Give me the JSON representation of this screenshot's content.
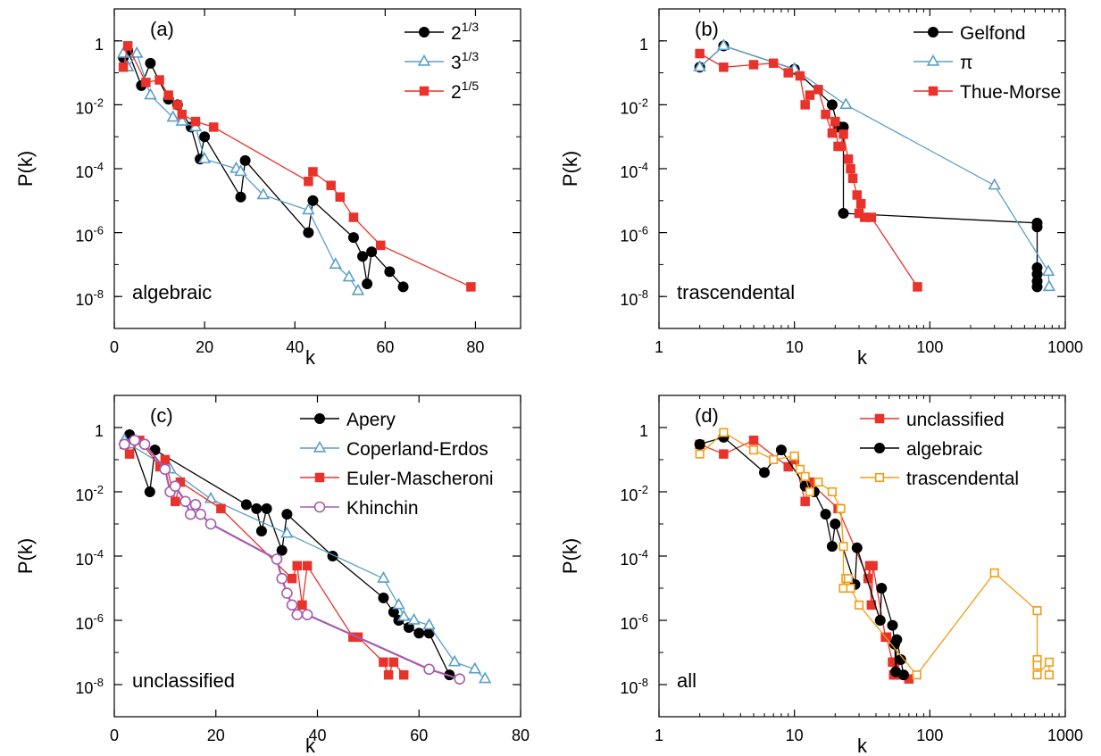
{
  "chart_data": [
    {
      "type": "line",
      "panel_label": "(a)",
      "annotation": "algebraic",
      "xlabel": "k",
      "ylabel": "P(k)",
      "xscale": "linear",
      "yscale": "log",
      "xlim": [
        0,
        90
      ],
      "ylim": [
        1e-09,
        10
      ],
      "legend_position": "top-right",
      "x_ticks": [
        {
          "value": 0,
          "label": "0"
        },
        {
          "value": 20,
          "label": "20"
        },
        {
          "value": 40,
          "label": "40"
        },
        {
          "value": 60,
          "label": "60"
        },
        {
          "value": 80,
          "label": "80"
        }
      ],
      "y_ticks": [
        {
          "value": 1,
          "base": "1",
          "exp": ""
        },
        {
          "value": 0.01,
          "base": "10",
          "exp": "-2"
        },
        {
          "value": 0.0001,
          "base": "10",
          "exp": "-4"
        },
        {
          "value": 1e-06,
          "base": "10",
          "exp": "-6"
        },
        {
          "value": 1e-08,
          "base": "10",
          "exp": "-8"
        }
      ],
      "series": [
        {
          "name_base": "2",
          "name_exp": "1/3",
          "color": "#000000",
          "marker": "circle",
          "fill": "filled",
          "x": [
            2,
            3,
            6,
            8,
            12,
            14,
            17,
            19,
            20,
            28,
            29,
            43,
            44,
            53,
            55,
            56,
            57,
            61,
            64
          ],
          "y": [
            0.3,
            0.5,
            0.04,
            0.2,
            0.015,
            0.01,
            0.002,
            0.0002,
            0.001,
            1.3e-05,
            0.00018,
            1e-06,
            1e-05,
            7e-07,
            1.8e-07,
            2.5e-08,
            2.5e-07,
            6e-08,
            2e-08
          ]
        },
        {
          "name_base": "3",
          "name_exp": "1/3",
          "color": "#5b9ec9",
          "marker": "triangle",
          "fill": "open",
          "x": [
            2,
            3,
            5,
            8,
            13,
            15,
            18,
            20,
            27,
            28,
            33,
            43,
            49,
            52,
            54
          ],
          "y": [
            0.4,
            0.15,
            0.4,
            0.02,
            0.004,
            0.003,
            0.002,
            0.0002,
            0.0001,
            8e-05,
            1.5e-05,
            5e-06,
            1e-07,
            4e-08,
            1.5e-08
          ]
        },
        {
          "name_base": "2",
          "name_exp": "1/5",
          "color": "#e8322a",
          "marker": "square",
          "fill": "filled",
          "x": [
            2,
            3,
            7,
            10,
            12,
            14,
            15,
            18,
            22,
            43,
            44,
            48,
            50,
            53,
            59,
            79
          ],
          "y": [
            0.15,
            0.7,
            0.05,
            0.06,
            0.02,
            0.01,
            0.005,
            0.003,
            0.002,
            4e-05,
            8e-05,
            3e-05,
            1.3e-05,
            3e-06,
            4e-07,
            2e-08
          ]
        }
      ]
    },
    {
      "type": "line",
      "panel_label": "(b)",
      "annotation": "trascendental",
      "xlabel": "k",
      "ylabel": "P(k)",
      "xscale": "log",
      "yscale": "log",
      "xlim": [
        1,
        1000
      ],
      "ylim": [
        1e-09,
        10
      ],
      "legend_position": "top-right",
      "x_ticks": [
        {
          "value": 1,
          "label": "1"
        },
        {
          "value": 10,
          "label": "10"
        },
        {
          "value": 100,
          "label": "100"
        },
        {
          "value": 1000,
          "label": "1000"
        }
      ],
      "y_ticks": [
        {
          "value": 1,
          "base": "1",
          "exp": ""
        },
        {
          "value": 0.01,
          "base": "10",
          "exp": "-2"
        },
        {
          "value": 0.0001,
          "base": "10",
          "exp": "-4"
        },
        {
          "value": 1e-06,
          "base": "10",
          "exp": "-6"
        },
        {
          "value": 1e-08,
          "base": "10",
          "exp": "-8"
        }
      ],
      "series": [
        {
          "name": "Gelfond",
          "color": "#000000",
          "marker": "circle",
          "fill": "filled",
          "x": [
            2,
            3,
            10,
            19,
            21,
            22,
            23,
            23,
            620,
            620,
            620,
            620,
            620,
            620
          ],
          "y": [
            0.15,
            0.7,
            0.13,
            0.01,
            0.002,
            0.002,
            0.002,
            4e-06,
            2e-06,
            1.5e-06,
            8e-08,
            5e-08,
            3e-08,
            2e-08
          ]
        },
        {
          "name": "π",
          "color": "#5b9ec9",
          "marker": "triangle",
          "fill": "open",
          "x": [
            2,
            3,
            10,
            24,
            300,
            750,
            760
          ],
          "y": [
            0.15,
            0.7,
            0.13,
            0.01,
            3e-05,
            6e-08,
            2e-08
          ]
        },
        {
          "name": "Thue-Morse",
          "color": "#e8322a",
          "marker": "square",
          "fill": "filled",
          "x": [
            2,
            3,
            5,
            7,
            9,
            11,
            12,
            13,
            15,
            17,
            19,
            20,
            21,
            22,
            23,
            25,
            26,
            27,
            29,
            30,
            31,
            33,
            37,
            81
          ],
          "y": [
            0.4,
            0.15,
            0.18,
            0.2,
            0.1,
            0.08,
            0.01,
            0.02,
            0.03,
            0.005,
            0.0013,
            0.003,
            0.0005,
            0.0005,
            0.0012,
            0.0002,
            0.0001,
            5e-05,
            1.5e-05,
            4e-06,
            8e-06,
            3e-06,
            3e-06,
            2e-08
          ]
        }
      ]
    },
    {
      "type": "line",
      "panel_label": "(c)",
      "annotation": "unclassified",
      "xlabel": "k",
      "ylabel": "P(k)",
      "xscale": "linear",
      "yscale": "log",
      "xlim": [
        0,
        80
      ],
      "ylim": [
        1e-09,
        10
      ],
      "legend_position": "top-right",
      "x_ticks": [
        {
          "value": 0,
          "label": "0"
        },
        {
          "value": 20,
          "label": "20"
        },
        {
          "value": 40,
          "label": "40"
        },
        {
          "value": 60,
          "label": "60"
        },
        {
          "value": 80,
          "label": "80"
        }
      ],
      "y_ticks": [
        {
          "value": 1,
          "base": "1",
          "exp": ""
        },
        {
          "value": 0.01,
          "base": "10",
          "exp": "-2"
        },
        {
          "value": 0.0001,
          "base": "10",
          "exp": "-4"
        },
        {
          "value": 1e-06,
          "base": "10",
          "exp": "-6"
        },
        {
          "value": 1e-08,
          "base": "10",
          "exp": "-8"
        }
      ],
      "series": [
        {
          "name": "Apery",
          "color": "#000000",
          "marker": "circle",
          "fill": "filled",
          "x": [
            2,
            3,
            7,
            8,
            26,
            28,
            29,
            30,
            33,
            34,
            43,
            53,
            55,
            56,
            58,
            60,
            62,
            66
          ],
          "y": [
            0.3,
            0.6,
            0.01,
            0.2,
            0.004,
            0.003,
            0.0006,
            0.003,
            0.00015,
            0.002,
            0.0001,
            5e-06,
            1.8e-06,
            1e-06,
            6e-07,
            4e-07,
            4e-07,
            2e-08
          ]
        },
        {
          "name": "Coperland-Erdos",
          "color": "#5b9ec9",
          "marker": "triangle",
          "fill": "open",
          "x": [
            2,
            3,
            11,
            19,
            34,
            53,
            56,
            57,
            59,
            62,
            67,
            71,
            73
          ],
          "y": [
            0.4,
            0.3,
            0.05,
            0.006,
            0.0005,
            2e-05,
            3e-06,
            1.3e-06,
            1e-06,
            7e-07,
            5e-08,
            3e-08,
            1.5e-08
          ]
        },
        {
          "name": "Euler-Mascheroni",
          "color": "#e8322a",
          "marker": "square",
          "fill": "filled",
          "x": [
            2,
            3,
            5,
            9,
            10,
            12,
            13,
            21,
            35,
            36,
            37,
            38,
            47,
            48,
            53,
            54,
            55,
            57
          ],
          "y": [
            0.3,
            0.15,
            0.4,
            0.06,
            0.1,
            0.005,
            0.02,
            0.003,
            2e-05,
            5e-05,
            3e-06,
            5e-05,
            3e-07,
            3e-07,
            5e-08,
            2e-08,
            5e-08,
            2e-08
          ]
        },
        {
          "name": "Khinchin",
          "color": "#a65cad",
          "marker": "circle",
          "fill": "open",
          "x": [
            2,
            4,
            6,
            10,
            11,
            12,
            14,
            15,
            16,
            17,
            19,
            32,
            33,
            34,
            35,
            36,
            38,
            62,
            68
          ],
          "y": [
            0.3,
            0.4,
            0.3,
            0.05,
            0.01,
            0.015,
            0.005,
            0.002,
            0.004,
            0.002,
            0.001,
            8e-05,
            2e-05,
            7e-06,
            3e-06,
            1.5e-06,
            1.5e-06,
            3e-08,
            1.5e-08
          ]
        }
      ]
    },
    {
      "type": "line",
      "panel_label": "(d)",
      "annotation": "all",
      "xlabel": "k",
      "ylabel": "P(k)",
      "xscale": "log",
      "yscale": "log",
      "xlim": [
        1,
        1000
      ],
      "ylim": [
        1e-09,
        10
      ],
      "legend_position": "top-right",
      "x_ticks": [
        {
          "value": 1,
          "label": "1"
        },
        {
          "value": 10,
          "label": "10"
        },
        {
          "value": 100,
          "label": "100"
        },
        {
          "value": 1000,
          "label": "1000"
        }
      ],
      "y_ticks": [
        {
          "value": 1,
          "base": "1",
          "exp": ""
        },
        {
          "value": 0.01,
          "base": "10",
          "exp": "-2"
        },
        {
          "value": 0.0001,
          "base": "10",
          "exp": "-4"
        },
        {
          "value": 1e-06,
          "base": "10",
          "exp": "-6"
        },
        {
          "value": 1e-08,
          "base": "10",
          "exp": "-8"
        }
      ],
      "series": [
        {
          "name": "unclassified",
          "color": "#e8322a",
          "marker": "square",
          "fill": "filled",
          "x": [
            2,
            3,
            5,
            9,
            10,
            12,
            13,
            21,
            35,
            36,
            37,
            38,
            47,
            48,
            53,
            54,
            55,
            57,
            70
          ],
          "y": [
            0.3,
            0.15,
            0.4,
            0.06,
            0.1,
            0.005,
            0.02,
            0.003,
            2e-05,
            5e-05,
            3e-06,
            5e-05,
            3e-07,
            3e-07,
            5e-08,
            2e-08,
            5e-08,
            2e-08,
            1.5e-08
          ]
        },
        {
          "name": "algebraic",
          "color": "#000000",
          "marker": "circle",
          "fill": "filled",
          "x": [
            2,
            3,
            6,
            8,
            12,
            14,
            17,
            19,
            20,
            28,
            29,
            43,
            44,
            53,
            55,
            56,
            57,
            61,
            64
          ],
          "y": [
            0.3,
            0.5,
            0.04,
            0.2,
            0.015,
            0.01,
            0.002,
            0.0002,
            0.001,
            1.3e-05,
            0.00018,
            1e-06,
            1e-05,
            7e-07,
            1.8e-07,
            2.5e-08,
            2.5e-07,
            6e-08,
            2e-08
          ]
        },
        {
          "name": "trascendental",
          "color": "#f39c12",
          "marker": "square",
          "fill": "open",
          "x": [
            2,
            3,
            5,
            7,
            10,
            11,
            12,
            13,
            15,
            19,
            22,
            23,
            23,
            24,
            25,
            26,
            30,
            80,
            300,
            620,
            620,
            620,
            620,
            760,
            760
          ],
          "y": [
            0.15,
            0.7,
            0.2,
            0.1,
            0.13,
            0.05,
            0.03,
            0.01,
            0.02,
            0.01,
            0.003,
            0.0002,
            1e-05,
            2e-05,
            2e-05,
            1e-05,
            3e-06,
            2e-08,
            3e-05,
            2e-06,
            6e-08,
            4e-08,
            2e-08,
            5e-08,
            2e-08
          ]
        }
      ]
    }
  ]
}
